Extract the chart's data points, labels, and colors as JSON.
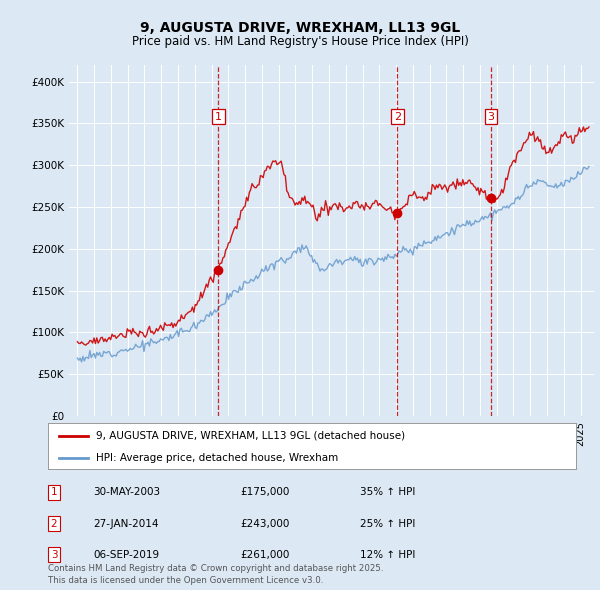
{
  "title": "9, AUGUSTA DRIVE, WREXHAM, LL13 9GL",
  "subtitle": "Price paid vs. HM Land Registry's House Price Index (HPI)",
  "background_color": "#dce9f5",
  "plot_bg_color": "#dce9f5",
  "ylim": [
    0,
    420000
  ],
  "yticks": [
    0,
    50000,
    100000,
    150000,
    200000,
    250000,
    300000,
    350000,
    400000
  ],
  "ytick_labels": [
    "£0",
    "£50K",
    "£100K",
    "£150K",
    "£200K",
    "£250K",
    "£300K",
    "£350K",
    "£400K"
  ],
  "sale_year_nums": [
    2003.41,
    2014.08,
    2019.67
  ],
  "sale_prices": [
    175000,
    243000,
    261000
  ],
  "sale_labels": [
    "1",
    "2",
    "3"
  ],
  "sale_info": [
    {
      "label": "1",
      "date": "30-MAY-2003",
      "price": "£175,000",
      "hpi": "35% ↑ HPI"
    },
    {
      "label": "2",
      "date": "27-JAN-2014",
      "price": "£243,000",
      "hpi": "25% ↑ HPI"
    },
    {
      "label": "3",
      "date": "06-SEP-2019",
      "price": "£261,000",
      "hpi": "12% ↑ HPI"
    }
  ],
  "legend_line1": "9, AUGUSTA DRIVE, WREXHAM, LL13 9GL (detached house)",
  "legend_line2": "HPI: Average price, detached house, Wrexham",
  "footer": "Contains HM Land Registry data © Crown copyright and database right 2025.\nThis data is licensed under the Open Government Licence v3.0.",
  "line_color_red": "#cc0000",
  "line_color_blue": "#6699cc",
  "vline_color": "#cc0000",
  "grid_color": "#ffffff",
  "box_color": "#cc0000"
}
